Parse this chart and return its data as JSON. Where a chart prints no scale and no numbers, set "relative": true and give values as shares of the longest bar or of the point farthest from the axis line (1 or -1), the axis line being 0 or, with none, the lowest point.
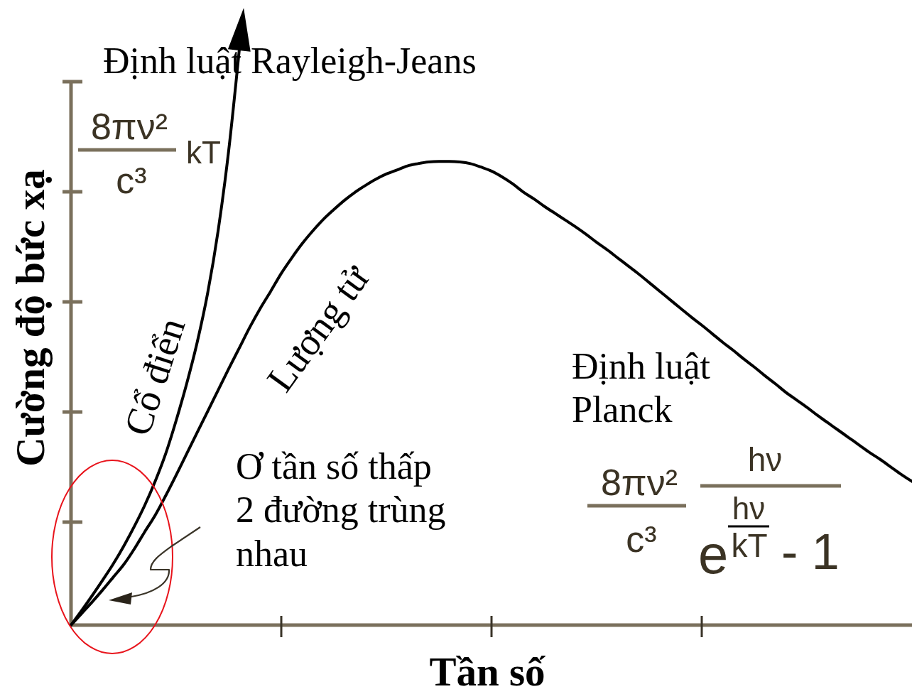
{
  "chart_data": {
    "type": "line",
    "relative": true,
    "xlabel": "Tần số",
    "ylabel": "Cường độ bức xạ",
    "categories": [
      null,
      null,
      null,
      null,
      null,
      null,
      null,
      null,
      null,
      null,
      null,
      null,
      null,
      null,
      null,
      null,
      null,
      null,
      null,
      null,
      null,
      null,
      null,
      null,
      null,
      null,
      null,
      null,
      null,
      null,
      null,
      null,
      null,
      null,
      null,
      null,
      null,
      null,
      null,
      null,
      null,
      null,
      null,
      null,
      null,
      null,
      null,
      null,
      null,
      null,
      null,
      null,
      null,
      null,
      null,
      null,
      null,
      null,
      null,
      null,
      null,
      null,
      null,
      null,
      null,
      null,
      null,
      null,
      null,
      null,
      null,
      null,
      null,
      null,
      null,
      null,
      null,
      null,
      null,
      null,
      null
    ],
    "series": [
      {
        "name": "Cổ điển",
        "color": "#000000",
        "values": [
          0,
          0.025,
          0.051,
          0.078,
          0.106,
          0.137,
          0.171,
          0.208,
          0.25,
          0.298,
          0.356,
          0.42,
          0.492,
          0.578,
          0.687,
          0.826,
          1,
          null,
          null,
          null,
          null,
          null,
          null,
          null,
          null,
          null,
          null,
          null,
          null,
          null,
          null,
          null,
          null,
          null,
          null,
          null,
          null,
          null,
          null,
          null,
          null,
          null,
          null,
          null,
          null,
          null,
          null,
          null,
          null,
          null,
          null,
          null,
          null,
          null,
          null,
          null,
          null,
          null,
          null,
          null,
          null,
          null,
          null,
          null,
          null,
          null,
          null,
          null,
          null,
          null,
          null,
          null,
          null,
          null,
          null,
          null,
          null,
          null,
          null,
          null,
          null
        ]
      },
      {
        "name": "Lượng tử",
        "color": "#000000",
        "values": [
          0,
          0.02,
          0.04,
          0.061,
          0.083,
          0.105,
          0.132,
          0.162,
          0.191,
          0.225,
          0.261,
          0.298,
          0.335,
          0.372,
          0.409,
          0.446,
          0.482,
          0.518,
          0.551,
          0.581,
          0.612,
          0.639,
          0.664,
          0.686,
          0.706,
          0.723,
          0.739,
          0.753,
          0.765,
          0.776,
          0.785,
          0.792,
          0.799,
          0.803,
          0.806,
          0.807,
          0.807,
          0.806,
          0.803,
          0.797,
          0.79,
          0.78,
          0.768,
          0.754,
          0.742,
          0.729,
          0.717,
          0.705,
          0.693,
          0.68,
          0.666,
          0.653,
          0.639,
          0.625,
          0.611,
          0.596,
          0.581,
          0.566,
          0.551,
          0.536,
          0.522,
          0.507,
          0.492,
          0.478,
          0.463,
          0.449,
          0.434,
          0.42,
          0.405,
          0.392,
          0.379,
          0.365,
          0.352,
          0.339,
          0.326,
          0.313,
          0.3,
          0.288,
          0.275,
          0.262,
          0.25
        ]
      }
    ],
    "annotations": [
      "Định luật Rayleigh-Jeans",
      "8πν²",
      "c³",
      "kT",
      "Ơ tần số thấp\n2 đường trùng\nnhau",
      "Định luật\nPlanck",
      "8πν²",
      "c³",
      "hν",
      "e",
      "hν",
      "kT",
      "- 1"
    ]
  }
}
